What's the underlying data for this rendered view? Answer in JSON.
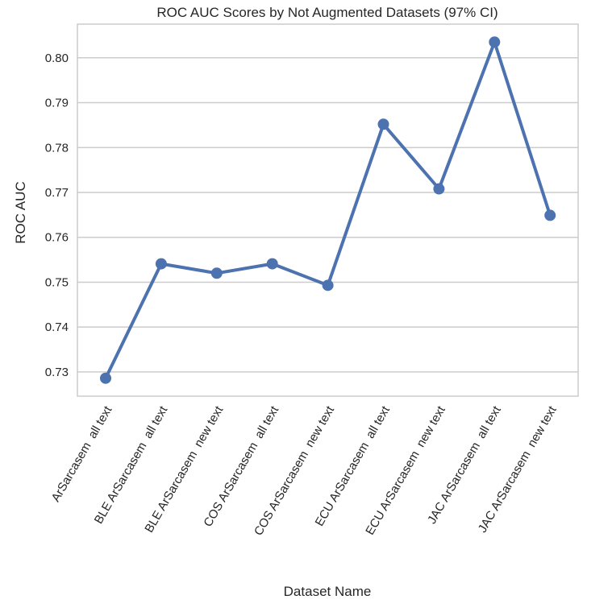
{
  "chart_data": {
    "type": "line",
    "title": "ROC AUC Scores by Not Augmented Datasets (97% CI)",
    "xlabel": "Dataset Name",
    "ylabel": "ROC AUC",
    "categories": [
      "ArSarcasem  all text",
      "BLE ArSarcasem  all text",
      "BLE ArSarcasem  new text",
      "COS ArSarcasem  all text",
      "COS ArSarcasem  new text",
      "ECU ArSarcasem  all text",
      "ECU ArSarcasem  new text",
      "JAC ArSarcasem  all text",
      "JAC ArSarcasem  new text"
    ],
    "values": [
      0.7286,
      0.7541,
      0.752,
      0.7541,
      0.7493,
      0.7852,
      0.7708,
      0.8035,
      0.7649
    ],
    "yticks": [
      "0.73",
      "0.74",
      "0.75",
      "0.76",
      "0.77",
      "0.78",
      "0.79",
      "0.80"
    ],
    "ylim": [
      0.7246,
      0.8075
    ],
    "grid": "horizontal",
    "line_color": "#4c72b0",
    "legend": "none"
  }
}
